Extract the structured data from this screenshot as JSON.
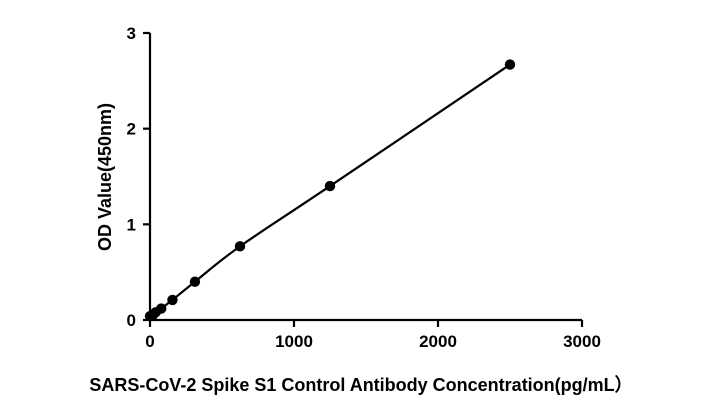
{
  "chart_data": {
    "type": "scatter",
    "title": "",
    "xlabel": "SARS-CoV-2 Spike S1 Control Antibody Concentration(pg/mL）",
    "ylabel": "OD Value(450nm)",
    "xlim": [
      0,
      3000
    ],
    "ylim": [
      0,
      3
    ],
    "x_ticks": [
      0,
      1000,
      2000,
      3000
    ],
    "y_ticks": [
      0,
      1,
      2,
      3
    ],
    "grid": false,
    "legend": "none",
    "series": [
      {
        "x": [
          0,
          19.5,
          39,
          78,
          156,
          312,
          625,
          1250,
          2500
        ],
        "y": [
          0.04,
          0.05,
          0.08,
          0.12,
          0.21,
          0.4,
          0.77,
          1.4,
          2.67
        ],
        "line": "fitted smooth curve",
        "marker": "filled circle",
        "color": "#000000"
      }
    ]
  }
}
